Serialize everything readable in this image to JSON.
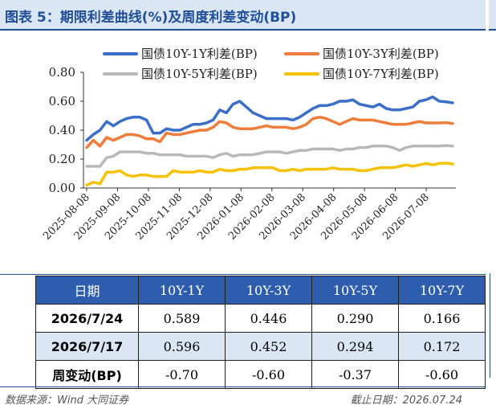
{
  "header": {
    "title": "图表 5：期限利差曲线(%)及周度利差变动(BP)"
  },
  "chart_data": {
    "type": "line",
    "ylim": [
      0,
      0.8
    ],
    "yticks": [
      "0.00",
      "0.20",
      "0.40",
      "0.60",
      "0.80"
    ],
    "x_tick_labels": [
      "2025-08-08",
      "2025-09-08",
      "2025-10-08",
      "2025-11-08",
      "2025-12-08",
      "2026-01-08",
      "2026-02-08",
      "2026-03-08",
      "2026-04-08",
      "2026-05-08",
      "2026-06-08",
      "2026-07-08"
    ],
    "legend_position": "top",
    "series": [
      {
        "name": "国债10Y-1Y利差(BP)",
        "color": "#3a6fc9",
        "values": [
          0.33,
          0.37,
          0.4,
          0.46,
          0.43,
          0.46,
          0.48,
          0.49,
          0.49,
          0.47,
          0.38,
          0.38,
          0.41,
          0.4,
          0.4,
          0.42,
          0.44,
          0.44,
          0.45,
          0.47,
          0.54,
          0.52,
          0.58,
          0.6,
          0.56,
          0.52,
          0.5,
          0.48,
          0.48,
          0.48,
          0.48,
          0.47,
          0.49,
          0.52,
          0.55,
          0.57,
          0.57,
          0.58,
          0.6,
          0.6,
          0.61,
          0.58,
          0.57,
          0.56,
          0.58,
          0.55,
          0.54,
          0.54,
          0.55,
          0.56,
          0.6,
          0.61,
          0.63,
          0.6,
          0.596,
          0.589
        ]
      },
      {
        "name": "国债10Y-3Y利差(BP)",
        "color": "#f07c3a",
        "values": [
          0.28,
          0.33,
          0.29,
          0.35,
          0.33,
          0.35,
          0.37,
          0.37,
          0.36,
          0.34,
          0.34,
          0.32,
          0.38,
          0.37,
          0.37,
          0.38,
          0.39,
          0.4,
          0.4,
          0.42,
          0.46,
          0.45,
          0.42,
          0.41,
          0.41,
          0.41,
          0.42,
          0.43,
          0.42,
          0.42,
          0.42,
          0.41,
          0.42,
          0.44,
          0.48,
          0.49,
          0.48,
          0.46,
          0.44,
          0.46,
          0.48,
          0.47,
          0.47,
          0.47,
          0.46,
          0.45,
          0.44,
          0.44,
          0.44,
          0.45,
          0.46,
          0.45,
          0.45,
          0.45,
          0.452,
          0.446
        ]
      },
      {
        "name": "国债10Y-5Y利差(BP)",
        "color": "#b8b8b8",
        "values": [
          0.15,
          0.15,
          0.15,
          0.21,
          0.22,
          0.25,
          0.25,
          0.25,
          0.25,
          0.24,
          0.24,
          0.23,
          0.23,
          0.23,
          0.23,
          0.22,
          0.22,
          0.22,
          0.22,
          0.21,
          0.23,
          0.24,
          0.22,
          0.23,
          0.23,
          0.23,
          0.24,
          0.25,
          0.25,
          0.25,
          0.24,
          0.25,
          0.26,
          0.26,
          0.27,
          0.27,
          0.27,
          0.27,
          0.26,
          0.27,
          0.27,
          0.28,
          0.28,
          0.29,
          0.29,
          0.29,
          0.28,
          0.26,
          0.28,
          0.29,
          0.29,
          0.29,
          0.29,
          0.29,
          0.294,
          0.29
        ]
      },
      {
        "name": "国债10Y-7Y利差(BP)",
        "color": "#f5c100",
        "values": [
          0.02,
          0.04,
          0.03,
          0.11,
          0.11,
          0.12,
          0.09,
          0.08,
          0.09,
          0.09,
          0.08,
          0.08,
          0.08,
          0.12,
          0.11,
          0.11,
          0.11,
          0.12,
          0.11,
          0.11,
          0.13,
          0.12,
          0.12,
          0.13,
          0.13,
          0.14,
          0.14,
          0.14,
          0.14,
          0.12,
          0.12,
          0.13,
          0.12,
          0.13,
          0.13,
          0.13,
          0.13,
          0.14,
          0.13,
          0.13,
          0.13,
          0.12,
          0.12,
          0.13,
          0.14,
          0.14,
          0.14,
          0.15,
          0.16,
          0.15,
          0.16,
          0.17,
          0.16,
          0.17,
          0.172,
          0.166
        ]
      }
    ]
  },
  "table": {
    "headers": [
      "日期",
      "10Y-1Y",
      "10Y-3Y",
      "10Y-5Y",
      "10Y-7Y"
    ],
    "rows": [
      [
        "2026/7/24",
        "0.589",
        "0.446",
        "0.290",
        "0.166"
      ],
      [
        "2026/7/17",
        "0.596",
        "0.452",
        "0.294",
        "0.172"
      ],
      [
        "周变动(BP)",
        "-0.70",
        "-0.60",
        "-0.37",
        "-0.60"
      ]
    ]
  },
  "footer": {
    "source": "数据来源：Wind 大同证券",
    "as_of": "截止日期：2026.07.24"
  }
}
